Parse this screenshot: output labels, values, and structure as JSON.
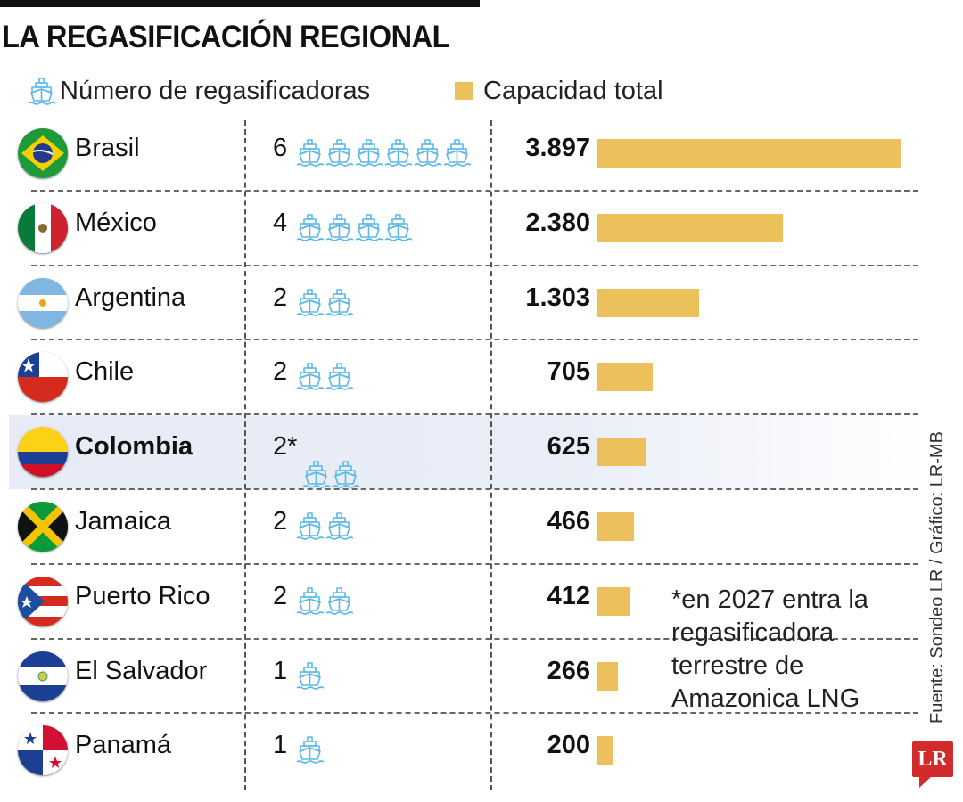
{
  "title": "LA REGASIFICACIÓN REGIONAL",
  "legend": {
    "count_label": "Número de regasificadoras",
    "capacity_label": "Capacidad total",
    "count_icon": "ship-icon"
  },
  "colors": {
    "bar": "#ecc05a",
    "ship": "#5bb8e6",
    "highlight": "#e6ebf6",
    "logo": "#d22b2b"
  },
  "chart_data": {
    "type": "bar",
    "title": "LA REGASIFICACIÓN REGIONAL",
    "categories": [
      "Brasil",
      "México",
      "Argentina",
      "Chile",
      "Colombia",
      "Jamaica",
      "Puerto Rico",
      "El Salvador",
      "Panamá"
    ],
    "series": [
      {
        "name": "Capacidad total",
        "values": [
          3897,
          2380,
          1303,
          705,
          625,
          466,
          412,
          266,
          200
        ]
      },
      {
        "name": "Número de regasificadoras",
        "values": [
          6,
          4,
          2,
          2,
          2,
          2,
          2,
          1,
          1
        ]
      }
    ],
    "value_labels": [
      "3.897",
      "2.380",
      "1.303",
      "705",
      "625",
      "466",
      "412",
      "266",
      "200"
    ],
    "count_labels": [
      "6",
      "4",
      "2",
      "2",
      "2*",
      "2",
      "2",
      "1",
      "1"
    ],
    "highlight": "Colombia",
    "orientation": "horizontal"
  },
  "footnote": "*en 2027 entra la regasificadora terrestre de Amazonica LNG",
  "source": "Fuente: Sondeo LR / Gráfico: LR-MB",
  "logo": "LR"
}
